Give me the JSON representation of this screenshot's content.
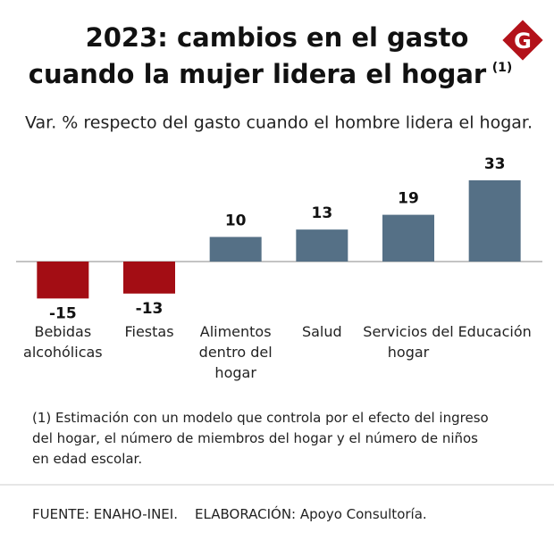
{
  "logo": "G",
  "chart_data": {
    "type": "bar",
    "title": [
      "2023: cambios en el gasto",
      "cuando la mujer lidera el hogar"
    ],
    "title_note": "(1)",
    "subtitle": "Var. % respecto del gasto cuando el hombre lidera el hogar.",
    "categories": [
      "Bebidas alcohólicas",
      "Fiestas",
      "Alimentos dentro del hogar",
      "Salud",
      "Servicios del hogar",
      "Educación"
    ],
    "values": [
      -15,
      -13,
      10,
      13,
      19,
      33
    ],
    "colors": [
      "#a30d14",
      "#a30d14",
      "#557086",
      "#557086",
      "#557086",
      "#557086"
    ],
    "footnote": "(1) Estimación con un modelo que controla por el efecto del ingreso del hogar, el número de miembros del hogar y el número de niños en edad escolar.",
    "source": "FUENTE: ENAHO-INEI.",
    "credit": "ELABORACIÓN: Apoyo Consultoría."
  }
}
